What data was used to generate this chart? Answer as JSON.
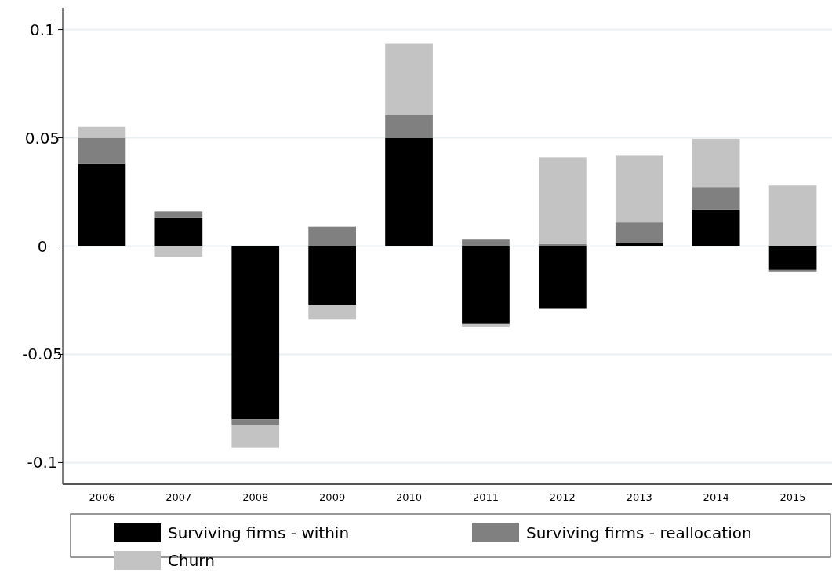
{
  "chart_data": {
    "type": "bar",
    "stacked": true,
    "categories": [
      "2006",
      "2007",
      "2008",
      "2009",
      "2010",
      "2011",
      "2012",
      "2013",
      "2014",
      "2015"
    ],
    "series": [
      {
        "name": "Surviving firms - within",
        "color": "#000000",
        "values": [
          0.038,
          0.013,
          -0.08,
          -0.027,
          0.05,
          -0.036,
          -0.029,
          0.0015,
          0.017,
          -0.011
        ]
      },
      {
        "name": "Surviving firms - reallocation",
        "color": "#808080",
        "values": [
          0.012,
          0.003,
          -0.0025,
          0.009,
          0.0105,
          0.003,
          0.001,
          0.0095,
          0.0103,
          -0.0007
        ]
      },
      {
        "name": "Churn",
        "color": "#c3c3c3",
        "values": [
          0.005,
          -0.005,
          -0.0107,
          -0.007,
          0.033,
          -0.0015,
          0.04,
          0.0307,
          0.0222,
          0.028
        ]
      }
    ],
    "ylim": [
      -0.11,
      0.11
    ],
    "yticks": [
      {
        "value": -0.1,
        "label": "-0.1"
      },
      {
        "value": -0.05,
        "label": "-0.05"
      },
      0,
      {
        "value": 0.05,
        "label": "0.05"
      },
      {
        "value": 0.1,
        "label": "0.1"
      }
    ],
    "grid": "y",
    "legend": "bottom"
  }
}
